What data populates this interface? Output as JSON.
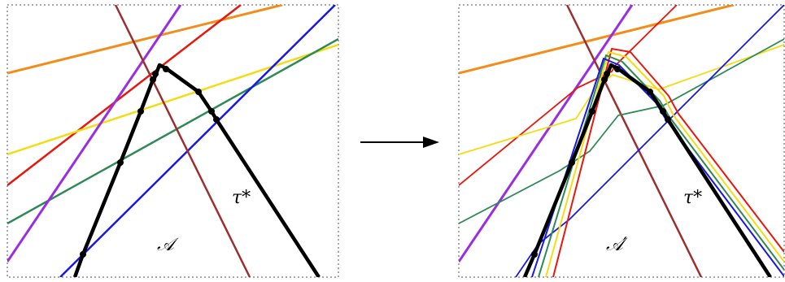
{
  "left_panel": {
    "region_label": "𝒜",
    "path_label": "τ*"
  },
  "right_panel": {
    "region_label": "𝒜′",
    "path_label": "τ*"
  },
  "colors": {
    "orange": "#f28c1b",
    "red": "#e8160c",
    "yellow": "#f4dc15",
    "green": "#2e8a55",
    "blue": "#1717e6",
    "purple": "#9b2de0",
    "brown": "#9b2f2f",
    "path": "#000000"
  }
}
